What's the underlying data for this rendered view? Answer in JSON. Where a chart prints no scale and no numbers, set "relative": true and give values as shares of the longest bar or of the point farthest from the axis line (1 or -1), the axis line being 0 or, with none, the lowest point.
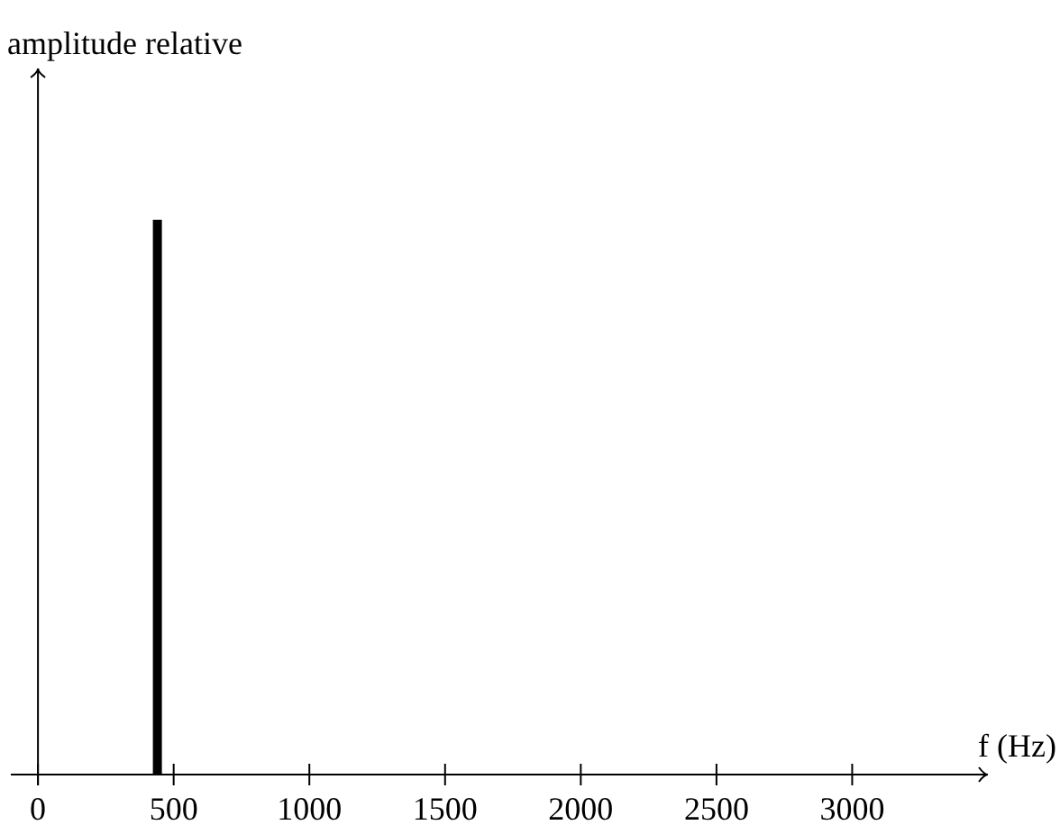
{
  "chart_data": {
    "type": "bar",
    "ylabel": "amplitude relative",
    "xlabel": "f (Hz)",
    "x": [
      440
    ],
    "values": [
      1
    ],
    "relative": true,
    "color": "#000000",
    "xlim": [
      -100,
      3500
    ],
    "xticks": [
      0,
      500,
      1000,
      1500,
      2000,
      2500,
      3000
    ]
  }
}
